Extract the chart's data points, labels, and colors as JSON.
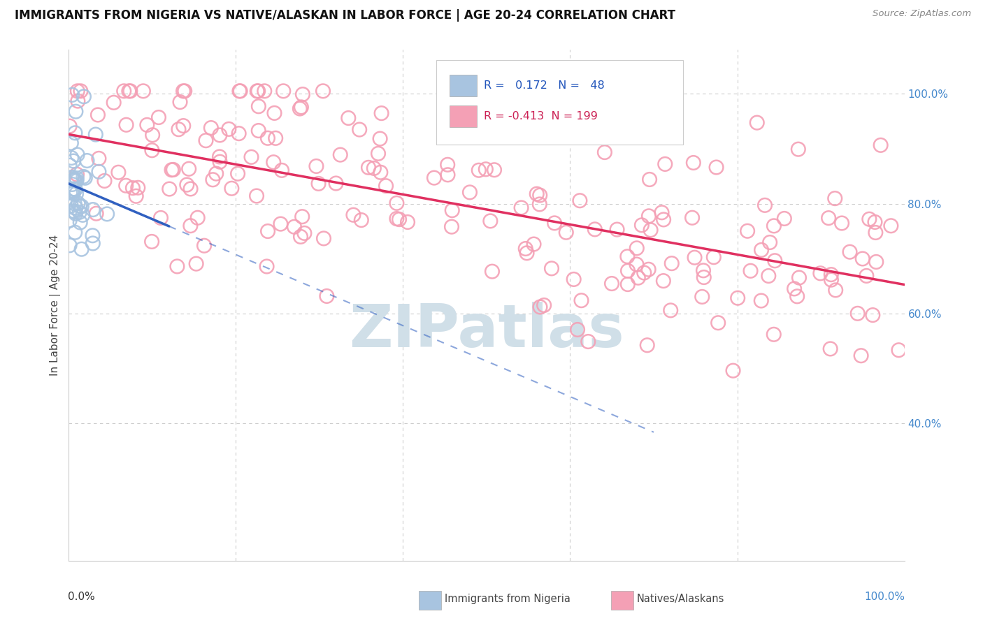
{
  "title": "IMMIGRANTS FROM NIGERIA VS NATIVE/ALASKAN IN LABOR FORCE | AGE 20-24 CORRELATION CHART",
  "source": "Source: ZipAtlas.com",
  "ylabel": "In Labor Force | Age 20-24",
  "right_ytick_vals": [
    0.4,
    0.6,
    0.8,
    1.0
  ],
  "right_ytick_labels": [
    "40.0%",
    "60.0%",
    "80.0%",
    "100.0%"
  ],
  "legend_blue_R": "0.172",
  "legend_blue_N": "48",
  "legend_pink_R": "-0.413",
  "legend_pink_N": "199",
  "legend_label_blue": "Immigrants from Nigeria",
  "legend_label_pink": "Natives/Alaskans",
  "blue_color": "#a8c4e0",
  "pink_color": "#f4a0b5",
  "line_blue_color": "#3060c0",
  "line_pink_color": "#e03060",
  "background_color": "#ffffff",
  "grid_color": "#cccccc",
  "ylim_min": 0.15,
  "ylim_max": 1.08,
  "xlim_min": 0.0,
  "xlim_max": 1.0
}
